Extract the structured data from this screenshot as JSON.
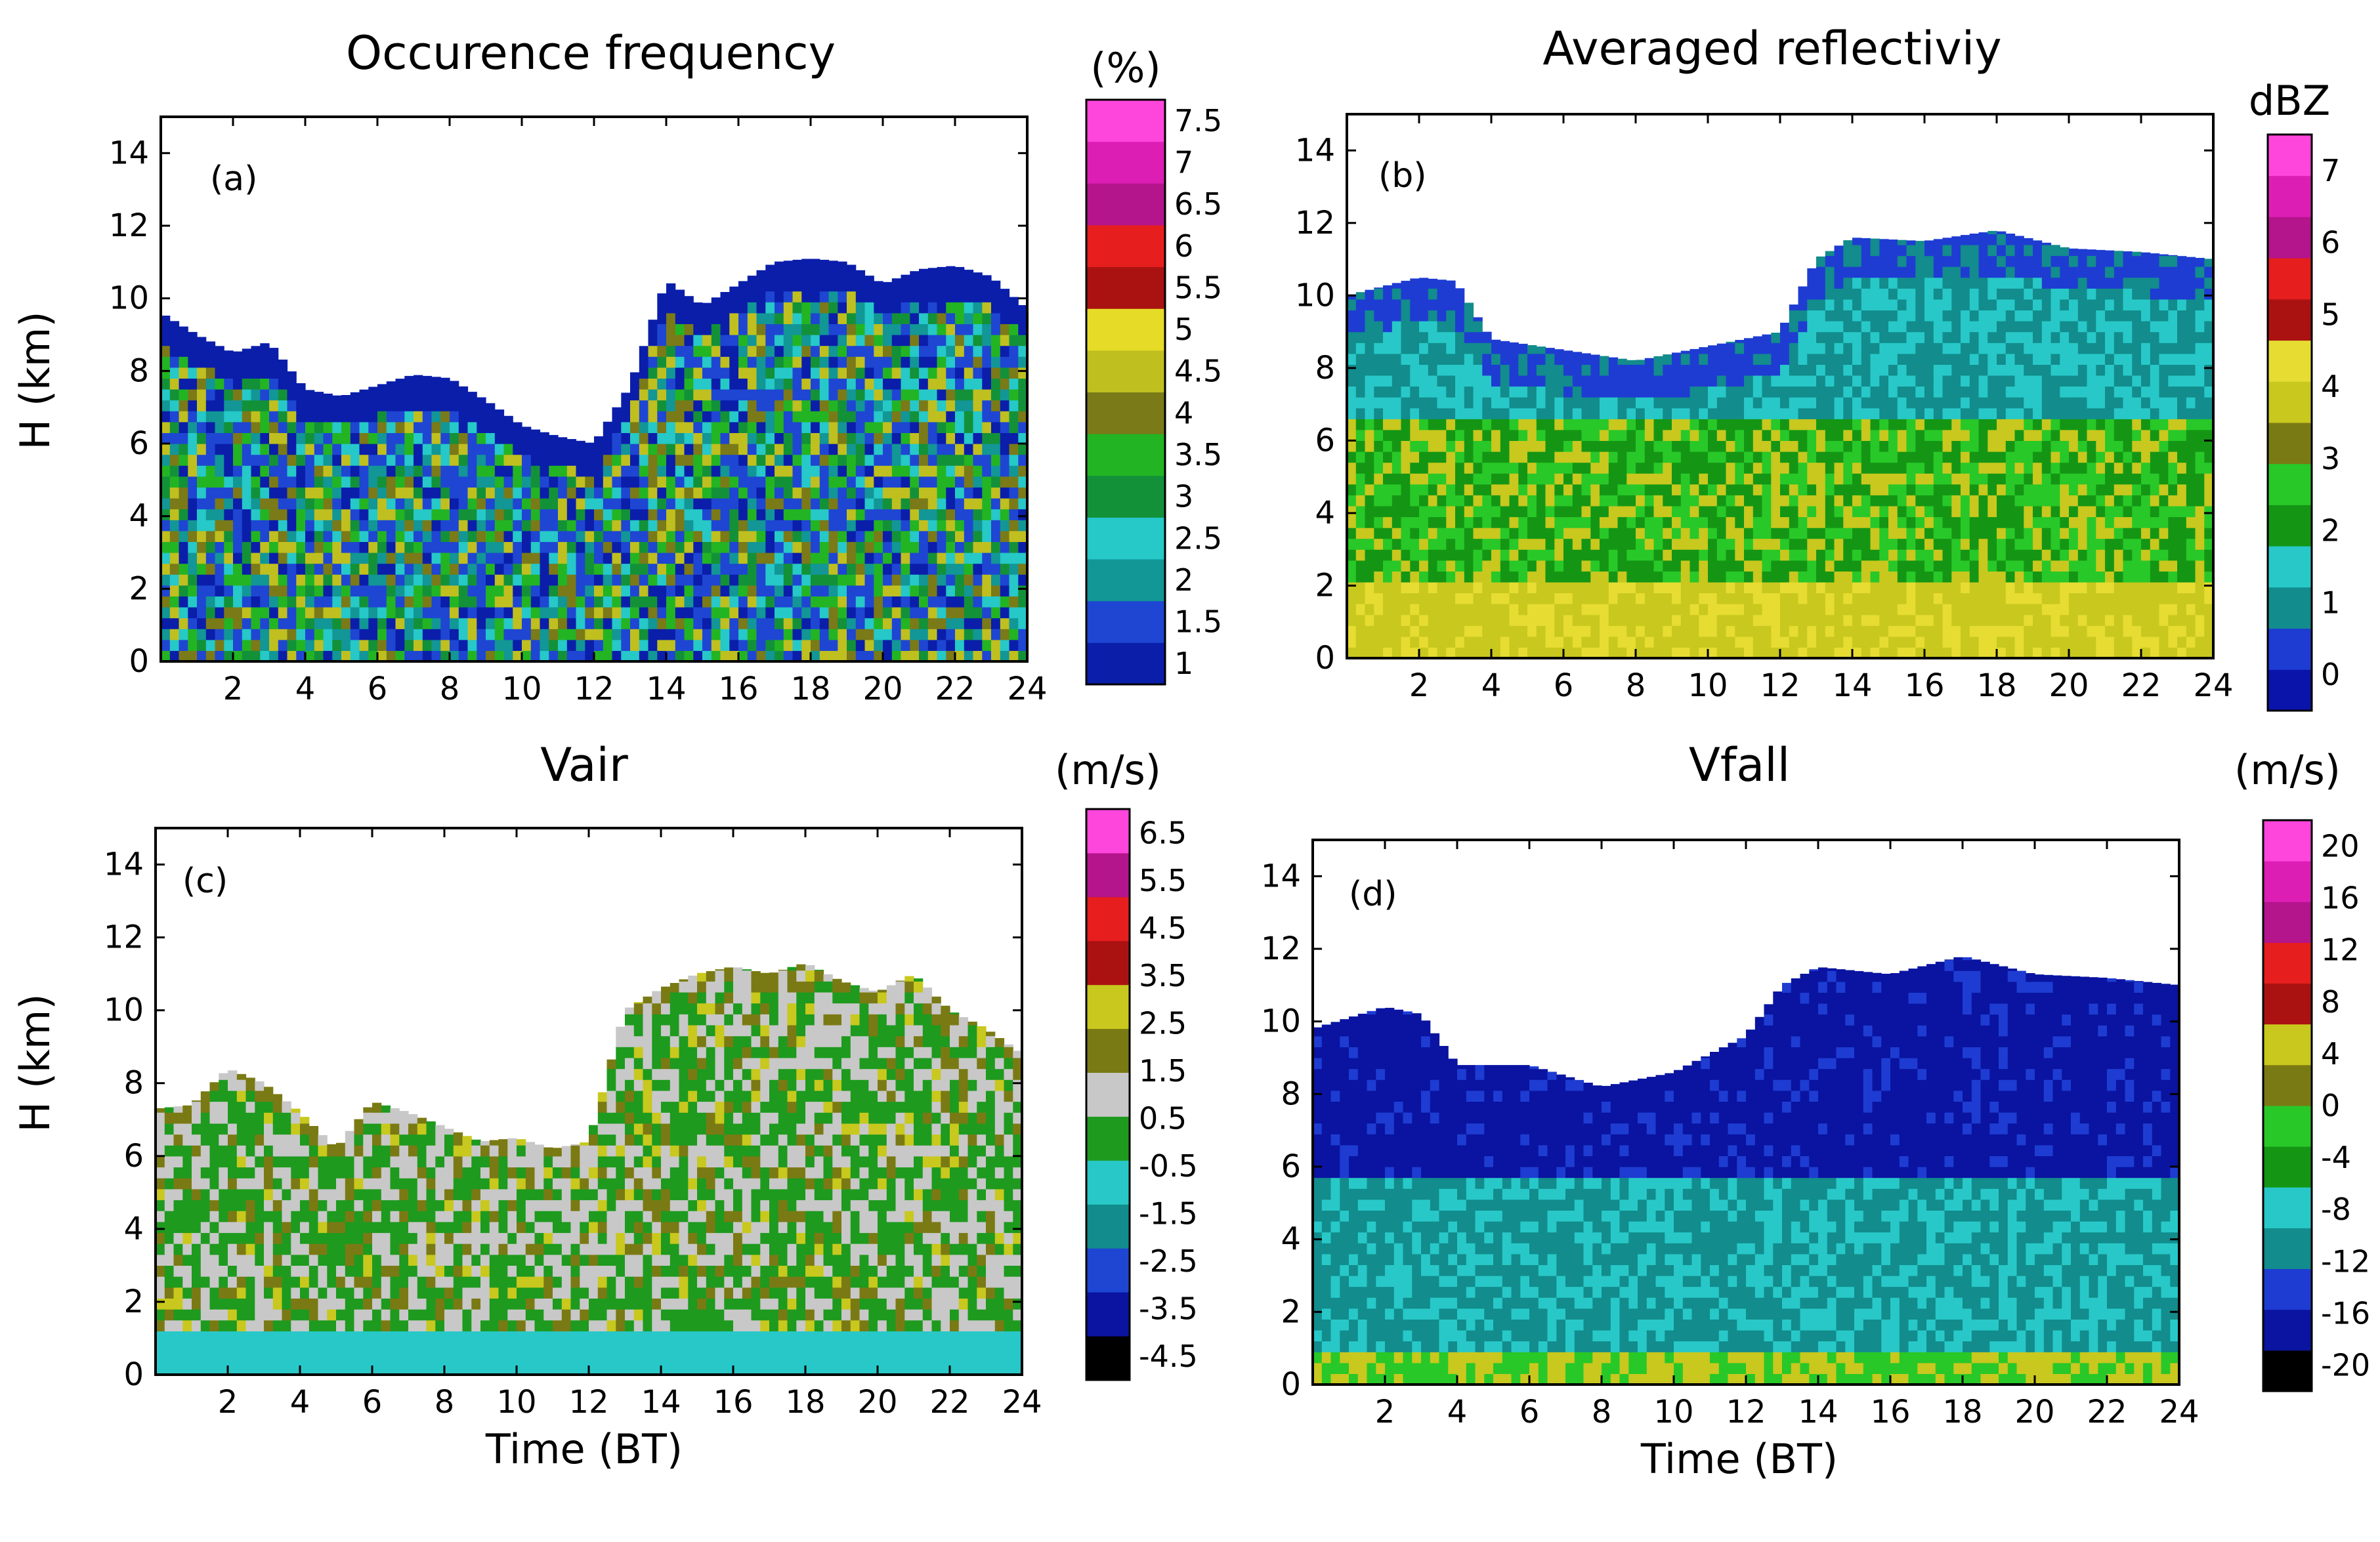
{
  "figure": {
    "shared_xlabel": "Time (BT)",
    "shared_ylabel": "H (km)"
  },
  "chart_data": [
    {
      "type": "heatmap",
      "panel": "(a)",
      "title": "Occurence frequency",
      "xlabel": "",
      "ylabel": "H (km)",
      "xlim": [
        0,
        24
      ],
      "ylim": [
        0,
        15
      ],
      "x_ticks": [
        "2",
        "4",
        "6",
        "8",
        "10",
        "12",
        "14",
        "16",
        "18",
        "20",
        "22",
        "24"
      ],
      "y_ticks": [
        "0",
        "2",
        "4",
        "6",
        "8",
        "10",
        "12",
        "14"
      ],
      "colorbar": {
        "label": "(%)",
        "tick_labels": [
          "1",
          "1.5",
          "2",
          "2.5",
          "3",
          "3.5",
          "4",
          "4.5",
          "5",
          "5.5",
          "6",
          "6.5",
          "7",
          "7.5"
        ],
        "colors": [
          "#0a1eaa",
          "#1e46d2",
          "#129696",
          "#26c8c8",
          "#139139",
          "#23b423",
          "#7a7a18",
          "#bfbf20",
          "#e6dc28",
          "#aa1212",
          "#e61e1e",
          "#b4148c",
          "#dc1eb4",
          "#ff46dc"
        ]
      },
      "echo_top_km": [
        {
          "t": 0,
          "top": 9.6
        },
        {
          "t": 1,
          "top": 9.0
        },
        {
          "t": 2,
          "top": 8.5
        },
        {
          "t": 3,
          "top": 8.8
        },
        {
          "t": 4,
          "top": 7.5
        },
        {
          "t": 5,
          "top": 7.3
        },
        {
          "t": 6,
          "top": 7.6
        },
        {
          "t": 7,
          "top": 7.9
        },
        {
          "t": 8,
          "top": 7.8
        },
        {
          "t": 9,
          "top": 7.2
        },
        {
          "t": 10,
          "top": 6.5
        },
        {
          "t": 11,
          "top": 6.2
        },
        {
          "t": 12,
          "top": 6.0
        },
        {
          "t": 13,
          "top": 7.6
        },
        {
          "t": 14,
          "top": 10.5
        },
        {
          "t": 15,
          "top": 9.8
        },
        {
          "t": 16,
          "top": 10.4
        },
        {
          "t": 17,
          "top": 11.0
        },
        {
          "t": 18,
          "top": 11.1
        },
        {
          "t": 19,
          "top": 11.0
        },
        {
          "t": 20,
          "top": 10.4
        },
        {
          "t": 21,
          "top": 10.8
        },
        {
          "t": 22,
          "top": 10.9
        },
        {
          "t": 23,
          "top": 10.6
        },
        {
          "t": 24,
          "top": 9.7
        }
      ]
    },
    {
      "type": "heatmap",
      "panel": "(b)",
      "title": "Averaged reflectiviy",
      "xlabel": "",
      "ylabel": "",
      "xlim": [
        0,
        24
      ],
      "ylim": [
        0,
        15
      ],
      "x_ticks": [
        "2",
        "4",
        "6",
        "8",
        "10",
        "12",
        "14",
        "16",
        "18",
        "20",
        "22",
        "24"
      ],
      "y_ticks": [
        "0",
        "2",
        "4",
        "6",
        "8",
        "10",
        "12",
        "14"
      ],
      "colorbar": {
        "label": "dBZ",
        "tick_labels": [
          "0",
          "1",
          "2",
          "3",
          "4",
          "5",
          "6",
          "7"
        ],
        "colors": [
          "#0a14aa",
          "#1e3cd2",
          "#128c8c",
          "#28c8c8",
          "#149614",
          "#28c828",
          "#7a7a14",
          "#c8c81e",
          "#e6dc32",
          "#aa1212",
          "#e61e1e",
          "#b4148c",
          "#dc1eb4",
          "#ff46dc"
        ]
      },
      "echo_top_km": [
        {
          "t": 0,
          "top": 10.0
        },
        {
          "t": 2,
          "top": 10.5
        },
        {
          "t": 3,
          "top": 10.4
        },
        {
          "t": 4,
          "top": 8.8
        },
        {
          "t": 6,
          "top": 8.5
        },
        {
          "t": 8,
          "top": 8.2
        },
        {
          "t": 10,
          "top": 8.6
        },
        {
          "t": 12,
          "top": 9.0
        },
        {
          "t": 13,
          "top": 11.0
        },
        {
          "t": 14,
          "top": 11.6
        },
        {
          "t": 16,
          "top": 11.5
        },
        {
          "t": 18,
          "top": 11.8
        },
        {
          "t": 20,
          "top": 11.3
        },
        {
          "t": 22,
          "top": 11.2
        },
        {
          "t": 24,
          "top": 11.0
        }
      ]
    },
    {
      "type": "heatmap",
      "panel": "(c)",
      "title": "Vair",
      "xlabel": "",
      "ylabel": "H (km)",
      "xlim": [
        0,
        24
      ],
      "ylim": [
        0,
        15
      ],
      "x_ticks": [
        "2",
        "4",
        "6",
        "8",
        "10",
        "12",
        "14",
        "16",
        "18",
        "20",
        "22",
        "24"
      ],
      "y_ticks": [
        "0",
        "2",
        "4",
        "6",
        "8",
        "10",
        "12",
        "14"
      ],
      "colorbar": {
        "label": "(m/s)",
        "tick_labels": [
          "-4.5",
          "-3.5",
          "-2.5",
          "-1.5",
          "-0.5",
          "0.5",
          "1.5",
          "2.5",
          "3.5",
          "4.5",
          "5.5",
          "6.5"
        ],
        "colors": [
          "#000000",
          "#0a14a0",
          "#1e46d2",
          "#128c8c",
          "#28c8c8",
          "#1e9a1e",
          "#c8c8c8",
          "#7a7a14",
          "#c8c81e",
          "#aa1212",
          "#e61e1e",
          "#b4148c",
          "#ff46dc"
        ]
      },
      "echo_top_km": [
        {
          "t": 0,
          "top": 7.3
        },
        {
          "t": 1,
          "top": 7.4
        },
        {
          "t": 2,
          "top": 8.4
        },
        {
          "t": 3,
          "top": 8.0
        },
        {
          "t": 4,
          "top": 7.2
        },
        {
          "t": 5,
          "top": 6.2
        },
        {
          "t": 6,
          "top": 7.5
        },
        {
          "t": 7,
          "top": 7.2
        },
        {
          "t": 8,
          "top": 6.8
        },
        {
          "t": 9,
          "top": 6.4
        },
        {
          "t": 10,
          "top": 6.5
        },
        {
          "t": 11,
          "top": 6.2
        },
        {
          "t": 12,
          "top": 6.4
        },
        {
          "t": 13,
          "top": 10.0
        },
        {
          "t": 14,
          "top": 10.6
        },
        {
          "t": 15,
          "top": 11.0
        },
        {
          "t": 16,
          "top": 11.2
        },
        {
          "t": 17,
          "top": 11.0
        },
        {
          "t": 18,
          "top": 11.3
        },
        {
          "t": 19,
          "top": 10.8
        },
        {
          "t": 20,
          "top": 10.5
        },
        {
          "t": 21,
          "top": 11.0
        },
        {
          "t": 22,
          "top": 10.0
        },
        {
          "t": 23,
          "top": 9.5
        },
        {
          "t": 24,
          "top": 8.8
        }
      ]
    },
    {
      "type": "heatmap",
      "panel": "(d)",
      "title": "Vfall",
      "xlabel": "Time (BT)",
      "ylabel": "",
      "xlim": [
        0,
        24
      ],
      "ylim": [
        0,
        15
      ],
      "x_ticks": [
        "2",
        "4",
        "6",
        "8",
        "10",
        "12",
        "14",
        "16",
        "18",
        "20",
        "22",
        "24"
      ],
      "y_ticks": [
        "0",
        "2",
        "4",
        "6",
        "8",
        "10",
        "12",
        "14"
      ],
      "colorbar": {
        "label": "(m/s)",
        "tick_labels": [
          "-20",
          "-16",
          "-12",
          "-8",
          "-4",
          "0",
          "4",
          "8",
          "12",
          "16",
          "20"
        ],
        "colors": [
          "#000000",
          "#0a14a0",
          "#1e3cd2",
          "#128c8c",
          "#28c8c8",
          "#149614",
          "#28c828",
          "#7a7a14",
          "#c8c81e",
          "#aa1212",
          "#e61e1e",
          "#b4148c",
          "#dc1eb4",
          "#ff46dc"
        ]
      },
      "echo_top_km": [
        {
          "t": 0,
          "top": 9.8
        },
        {
          "t": 2,
          "top": 10.4
        },
        {
          "t": 3,
          "top": 10.2
        },
        {
          "t": 4,
          "top": 8.8
        },
        {
          "t": 6,
          "top": 8.8
        },
        {
          "t": 8,
          "top": 8.2
        },
        {
          "t": 10,
          "top": 8.6
        },
        {
          "t": 12,
          "top": 9.6
        },
        {
          "t": 13,
          "top": 11.0
        },
        {
          "t": 14,
          "top": 11.5
        },
        {
          "t": 16,
          "top": 11.3
        },
        {
          "t": 18,
          "top": 11.8
        },
        {
          "t": 20,
          "top": 11.3
        },
        {
          "t": 22,
          "top": 11.2
        },
        {
          "t": 24,
          "top": 11.0
        }
      ]
    }
  ]
}
